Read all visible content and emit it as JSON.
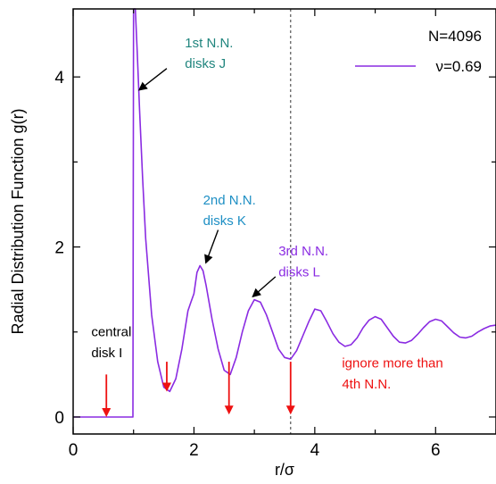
{
  "chart_data": {
    "type": "line",
    "xlabel": "r/σ",
    "ylabel": "Radial Distribution Function g(r)",
    "xlim": [
      0,
      7
    ],
    "ylim": [
      -0.2,
      4.8
    ],
    "xticks": [
      0,
      2,
      4,
      6
    ],
    "yticks": [
      0,
      2,
      4
    ],
    "legend": {
      "position": "top-right",
      "header": "N=4096",
      "entries": [
        {
          "label": "ν=0.69",
          "color": "#8a2be2"
        }
      ]
    },
    "series": [
      {
        "name": "ν=0.69",
        "color": "#8a2be2",
        "x": [
          0,
          0.5,
          0.99,
          1.0,
          1.03,
          1.06,
          1.1,
          1.15,
          1.2,
          1.3,
          1.4,
          1.5,
          1.6,
          1.7,
          1.8,
          1.9,
          1.95,
          2.0,
          2.05,
          2.1,
          2.15,
          2.2,
          2.3,
          2.4,
          2.5,
          2.6,
          2.7,
          2.8,
          2.9,
          3.0,
          3.1,
          3.2,
          3.3,
          3.4,
          3.5,
          3.6,
          3.7,
          3.8,
          3.9,
          4.0,
          4.1,
          4.2,
          4.3,
          4.4,
          4.5,
          4.6,
          4.7,
          4.8,
          4.9,
          5.0,
          5.1,
          5.2,
          5.3,
          5.4,
          5.5,
          5.6,
          5.7,
          5.8,
          5.9,
          6.0,
          6.1,
          6.2,
          6.3,
          6.4,
          6.5,
          6.6,
          6.7,
          6.8,
          6.9,
          7.0
        ],
        "y": [
          0,
          0,
          0,
          4.8,
          4.8,
          4.3,
          3.6,
          2.8,
          2.1,
          1.2,
          0.65,
          0.35,
          0.3,
          0.45,
          0.8,
          1.25,
          1.35,
          1.45,
          1.7,
          1.78,
          1.72,
          1.55,
          1.15,
          0.8,
          0.55,
          0.5,
          0.7,
          1.0,
          1.25,
          1.38,
          1.35,
          1.2,
          1.0,
          0.8,
          0.7,
          0.68,
          0.78,
          0.95,
          1.12,
          1.27,
          1.25,
          1.12,
          0.98,
          0.88,
          0.83,
          0.85,
          0.93,
          1.05,
          1.14,
          1.18,
          1.15,
          1.05,
          0.95,
          0.88,
          0.87,
          0.9,
          0.97,
          1.05,
          1.12,
          1.15,
          1.13,
          1.06,
          0.99,
          0.94,
          0.93,
          0.95,
          1.0,
          1.04,
          1.07,
          1.08
        ]
      }
    ],
    "reference_line": {
      "x": 3.6,
      "style": "dotted",
      "color": "#555555"
    },
    "annotations": [
      {
        "lines": [
          "1st N.N.",
          "disks J"
        ],
        "color": "#20857e",
        "text_x": 1.85,
        "text_y": 4.35,
        "arrow_from": [
          1.55,
          4.1
        ],
        "arrow_to": [
          1.1,
          3.85
        ]
      },
      {
        "lines": [
          "2nd N.N.",
          "disks K"
        ],
        "color": "#1e8fc4",
        "text_x": 2.15,
        "text_y": 2.5,
        "arrow_from": [
          2.4,
          2.2
        ],
        "arrow_to": [
          2.2,
          1.82
        ]
      },
      {
        "lines": [
          "3rd N.N.",
          "disks L"
        ],
        "color": "#8a2be2",
        "text_x": 3.4,
        "text_y": 1.9,
        "arrow_from": [
          3.35,
          1.65
        ],
        "arrow_to": [
          2.98,
          1.42
        ]
      },
      {
        "lines": [
          "central",
          "disk I"
        ],
        "color": "#000000",
        "text_x": 0.3,
        "text_y": 0.95,
        "arrow_from": null,
        "arrow_to": null
      },
      {
        "lines": [
          "ignore more than",
          "4th N.N."
        ],
        "color": "#ee1111",
        "text_x": 4.45,
        "text_y": 0.58,
        "arrow_from": null,
        "arrow_to": null
      }
    ],
    "red_arrows": [
      {
        "x": 0.55,
        "y_from": 0.5,
        "y_to": 0.02
      },
      {
        "x": 1.55,
        "y_from": 0.65,
        "y_to": 0.32
      },
      {
        "x": 2.58,
        "y_from": 0.65,
        "y_to": 0.05
      },
      {
        "x": 3.6,
        "y_from": 0.65,
        "y_to": 0.05
      }
    ],
    "grid": false
  },
  "colors": {
    "curve": "#8a2be2",
    "red": "#ee1111"
  }
}
